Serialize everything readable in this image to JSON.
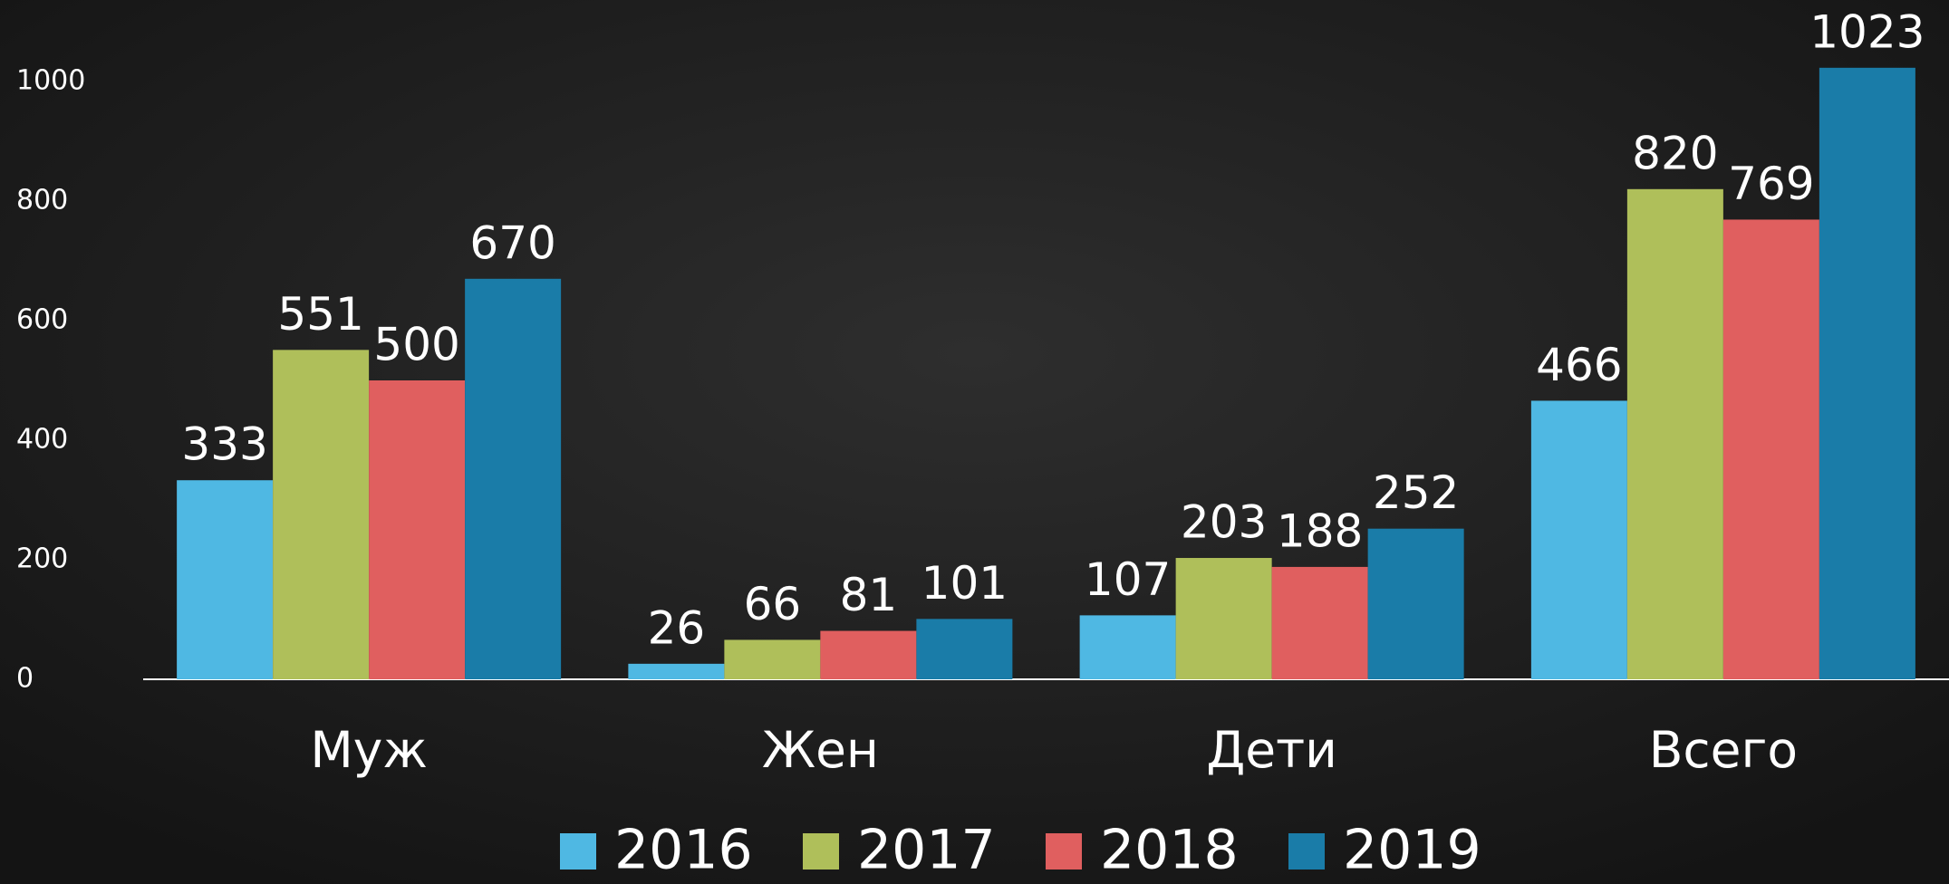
{
  "chart_data": {
    "type": "bar",
    "categories": [
      "Муж",
      "Жен",
      "Дети",
      "Всего"
    ],
    "series": [
      {
        "name": "2016",
        "color": "#4fb8e3",
        "values": [
          333,
          26,
          107,
          466
        ]
      },
      {
        "name": "2017",
        "color": "#afbf5a",
        "values": [
          551,
          66,
          203,
          820
        ]
      },
      {
        "name": "2018",
        "color": "#e05f5f",
        "values": [
          500,
          81,
          188,
          769
        ]
      },
      {
        "name": "2019",
        "color": "#1a7ca8",
        "values": [
          670,
          101,
          252,
          1023
        ]
      }
    ],
    "ylim": [
      0,
      1100
    ],
    "yticks": [
      0,
      200,
      400,
      600,
      800,
      1000
    ],
    "legend": "bottom"
  }
}
